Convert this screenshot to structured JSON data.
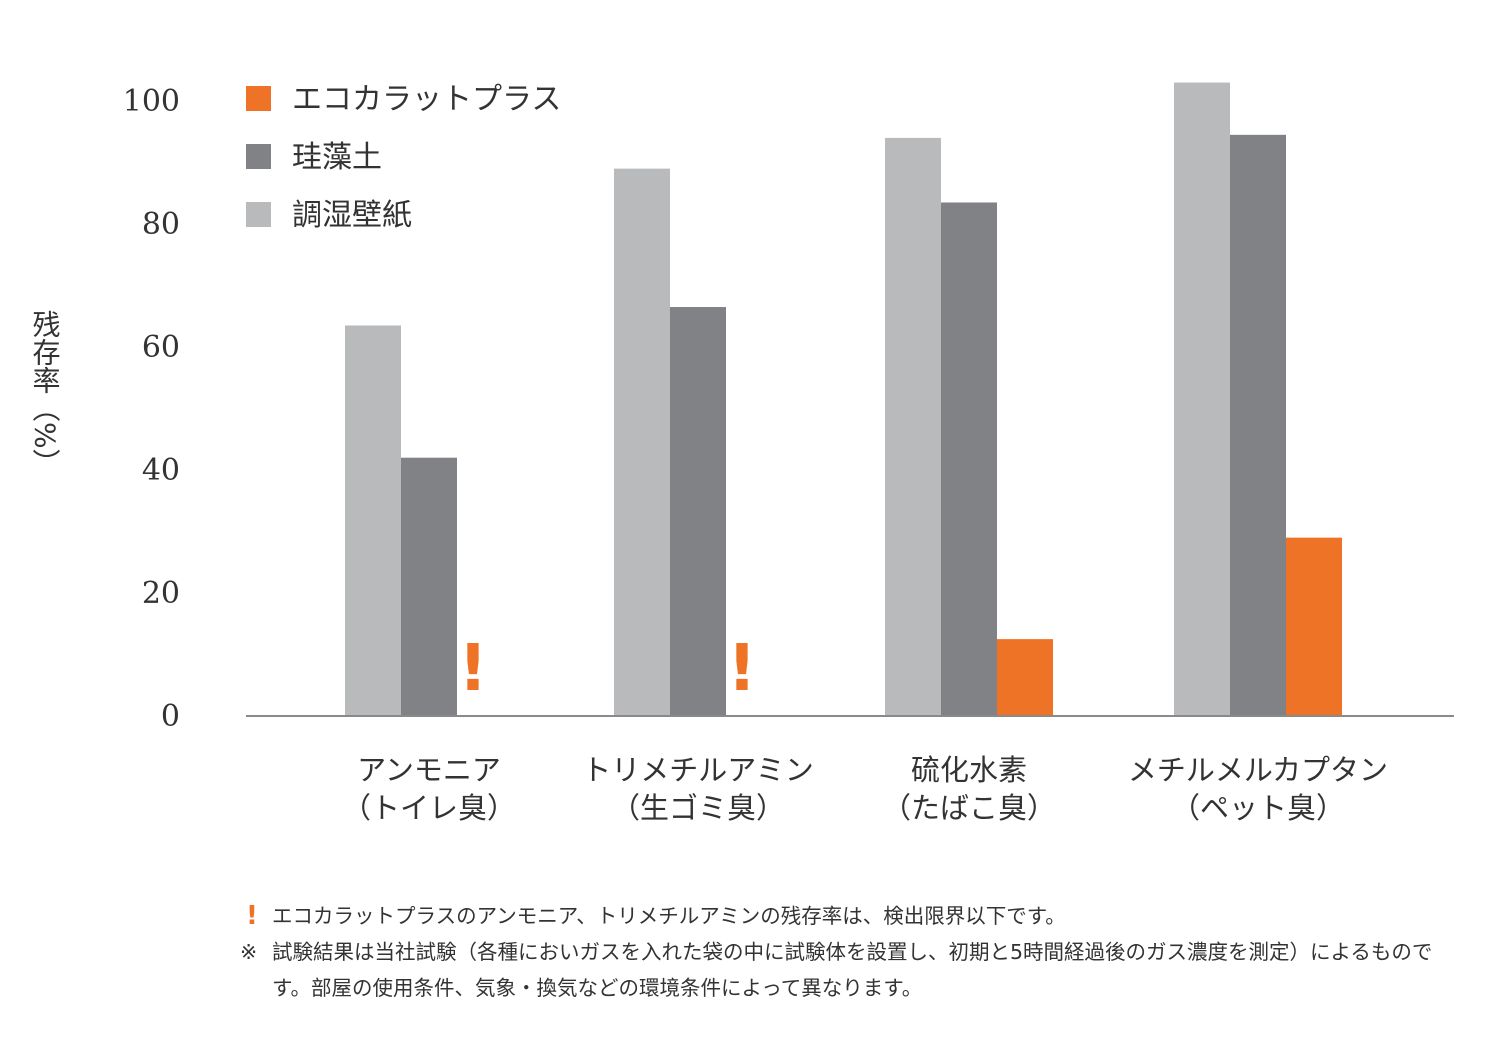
{
  "chart_data": {
    "type": "bar",
    "ylabel": "残存率（%）",
    "ylim": [
      0,
      100
    ],
    "yticks": [
      0,
      20,
      40,
      60,
      80,
      100
    ],
    "categories": [
      {
        "line1": "アンモニア",
        "line2": "（トイレ臭）"
      },
      {
        "line1": "トリメチルアミン",
        "line2": "（生ゴミ臭）"
      },
      {
        "line1": "硫化水素",
        "line2": "（たばこ臭）"
      },
      {
        "line1": "メチルメルカプタン",
        "line2": "（ペット臭）"
      }
    ],
    "series": [
      {
        "name": "調湿壁紙",
        "color": "#b8babc",
        "values": [
          63.5,
          89,
          94,
          103
        ]
      },
      {
        "name": "珪藻土",
        "color": "#818285",
        "values": [
          42,
          66.5,
          83.5,
          94.5
        ]
      },
      {
        "name": "エコカラットプラス",
        "color": "#ee7326",
        "values": [
          null,
          null,
          12.5,
          29
        ]
      }
    ],
    "legend": [
      {
        "name": "エコカラットプラス",
        "color": "#ee7326"
      },
      {
        "name": "珪藻土",
        "color": "#818285"
      },
      {
        "name": "調湿壁紙",
        "color": "#b8babc"
      }
    ],
    "below_detection_marker": "!",
    "below_detection_categories": [
      0,
      1
    ]
  },
  "footnotes": [
    {
      "mark": "!",
      "text": "エコカラットプラスのアンモニア、トリメチルアミンの残存率は、検出限界以下です。"
    },
    {
      "mark": "※",
      "text": "試験結果は当社試験（各種においガスを入れた袋の中に試験体を設置し、初期と5時間経過後のガス濃度を測定）によるものです。部屋の使用条件、気象・換気などの環境条件によって異なります。"
    }
  ]
}
